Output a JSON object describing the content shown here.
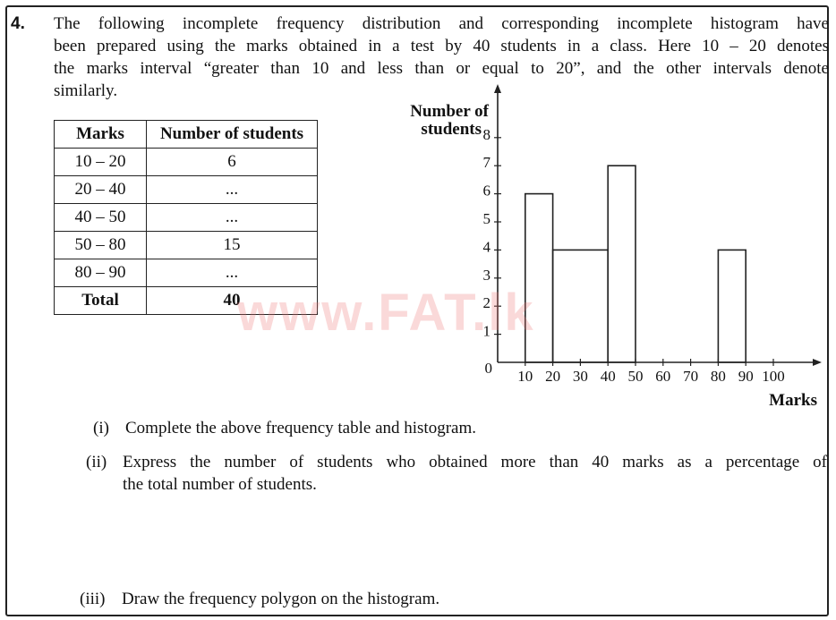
{
  "question": {
    "number": "4.",
    "intro_lines": [
      "The following incomplete frequency distribution and corresponding incomplete histogram have",
      "been prepared using the marks obtained in a test by 40 students in a class. Here 10 – 20 denotes",
      "the marks interval “greater than 10 and less than or equal to 20”, and the other intervals denote",
      "similarly."
    ]
  },
  "table": {
    "headers": [
      "Marks",
      "Number of students"
    ],
    "rows": [
      {
        "marks": "10 – 20",
        "students": "6"
      },
      {
        "marks": "20 – 40",
        "students": "..."
      },
      {
        "marks": "40 – 50",
        "students": "..."
      },
      {
        "marks": "50 – 80",
        "students": "15"
      },
      {
        "marks": "80 – 90",
        "students": "..."
      }
    ],
    "total": {
      "label": "Total",
      "value": "40"
    }
  },
  "watermark": "www.FAT.lk",
  "chart_data": {
    "type": "bar",
    "ylabel_lines": [
      "Number of",
      "students"
    ],
    "xlabel": "Marks",
    "origin_label": "0",
    "x_ticks": [
      "10",
      "20",
      "30",
      "40",
      "50",
      "60",
      "70",
      "80",
      "90",
      "100"
    ],
    "y_ticks": [
      "1",
      "2",
      "3",
      "4",
      "5",
      "6",
      "7",
      "8"
    ],
    "xlim": [
      0,
      110
    ],
    "ylim": [
      0,
      9
    ],
    "bars": [
      {
        "from": 10,
        "to": 20,
        "height": 6
      },
      {
        "from": 20,
        "to": 40,
        "height": 4
      },
      {
        "from": 40,
        "to": 50,
        "height": 7
      },
      {
        "from": 80,
        "to": 90,
        "height": 4
      }
    ]
  },
  "subquestions": [
    {
      "num": "(i)",
      "lines": [
        "Complete the above frequency table and histogram."
      ]
    },
    {
      "num": "(ii)",
      "lines": [
        "Express the number of students who obtained more than 40 marks as a percentage of",
        "the total number of students."
      ]
    },
    {
      "num": "(iii)",
      "lines": [
        "Draw the frequency polygon on the histogram."
      ]
    }
  ]
}
